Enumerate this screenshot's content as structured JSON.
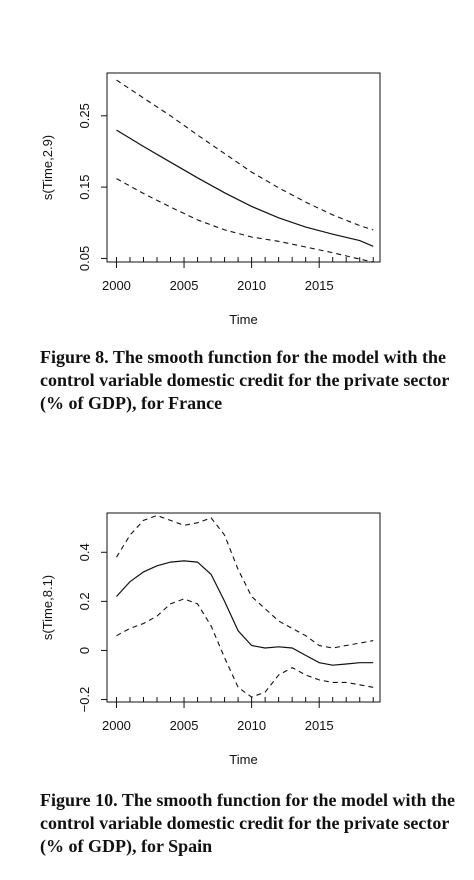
{
  "chart_data": [
    {
      "type": "line",
      "xlabel": "Time",
      "ylabel": "s(Time,2.9)",
      "xlim": [
        1999.3,
        2019.5
      ],
      "ylim": [
        0.045,
        0.31
      ],
      "x_ticks": [
        2000,
        2005,
        2010,
        2015
      ],
      "y_ticks": [
        0.05,
        0.15,
        0.25
      ],
      "rug": [
        2000,
        2001,
        2002,
        2003,
        2004,
        2005,
        2006,
        2007,
        2008,
        2009,
        2010,
        2011,
        2012,
        2013,
        2014,
        2015,
        2016,
        2017,
        2018,
        2019
      ],
      "series": [
        {
          "style": "solid",
          "x": [
            2000,
            2002,
            2004,
            2006,
            2008,
            2010,
            2012,
            2014,
            2016,
            2018,
            2019
          ],
          "values": [
            0.23,
            0.207,
            0.185,
            0.163,
            0.142,
            0.123,
            0.107,
            0.094,
            0.084,
            0.075,
            0.067
          ]
        },
        {
          "style": "dashed",
          "x": [
            2000,
            2002,
            2004,
            2006,
            2008,
            2010,
            2012,
            2014,
            2016,
            2018,
            2019
          ],
          "values": [
            0.3,
            0.275,
            0.25,
            0.223,
            0.197,
            0.171,
            0.149,
            0.129,
            0.111,
            0.096,
            0.09
          ]
        },
        {
          "style": "dashed",
          "x": [
            2000,
            2002,
            2004,
            2006,
            2008,
            2010,
            2012,
            2014,
            2016,
            2018,
            2019
          ],
          "values": [
            0.162,
            0.141,
            0.122,
            0.104,
            0.09,
            0.08,
            0.074,
            0.066,
            0.058,
            0.049,
            0.045
          ]
        }
      ],
      "caption": "Figure 8. The smooth function for the model with the control variable domestic credit for the private sector (% of GDP), for France"
    },
    {
      "type": "line",
      "xlabel": "Time",
      "ylabel": "s(Time,8.1)",
      "xlim": [
        1999.3,
        2019.5
      ],
      "ylim": [
        -0.21,
        0.56
      ],
      "x_ticks": [
        2000,
        2005,
        2010,
        2015
      ],
      "y_ticks": [
        -0.2,
        0.0,
        0.2,
        0.4
      ],
      "rug": [
        2000,
        2001,
        2002,
        2003,
        2004,
        2005,
        2006,
        2007,
        2008,
        2009,
        2010,
        2011,
        2012,
        2013,
        2014,
        2015,
        2016,
        2017,
        2018,
        2019
      ],
      "series": [
        {
          "style": "solid",
          "x": [
            2000,
            2001,
            2002,
            2003,
            2004,
            2005,
            2006,
            2007,
            2008,
            2009,
            2010,
            2011,
            2012,
            2013,
            2014,
            2015,
            2016,
            2017,
            2018,
            2019
          ],
          "values": [
            0.22,
            0.28,
            0.32,
            0.345,
            0.36,
            0.365,
            0.36,
            0.31,
            0.2,
            0.08,
            0.02,
            0.01,
            0.015,
            0.01,
            -0.02,
            -0.05,
            -0.06,
            -0.055,
            -0.05,
            -0.05
          ]
        },
        {
          "style": "dashed",
          "x": [
            2000,
            2001,
            2002,
            2003,
            2004,
            2005,
            2006,
            2007,
            2008,
            2009,
            2010,
            2011,
            2012,
            2013,
            2014,
            2015,
            2016,
            2017,
            2018,
            2019
          ],
          "values": [
            0.38,
            0.47,
            0.53,
            0.55,
            0.53,
            0.51,
            0.52,
            0.54,
            0.47,
            0.33,
            0.22,
            0.17,
            0.12,
            0.09,
            0.06,
            0.02,
            0.01,
            0.02,
            0.03,
            0.04
          ]
        },
        {
          "style": "dashed",
          "x": [
            2000,
            2001,
            2002,
            2003,
            2004,
            2005,
            2006,
            2007,
            2008,
            2009,
            2010,
            2011,
            2012,
            2013,
            2014,
            2015,
            2016,
            2017,
            2018,
            2019
          ],
          "values": [
            0.06,
            0.09,
            0.11,
            0.14,
            0.19,
            0.21,
            0.19,
            0.1,
            -0.03,
            -0.15,
            -0.19,
            -0.17,
            -0.1,
            -0.07,
            -0.1,
            -0.12,
            -0.13,
            -0.13,
            -0.14,
            -0.15
          ]
        }
      ],
      "caption": "Figure 10. The smooth function for the model with the control variable domestic credit for the private sector (% of GDP), for Spain"
    }
  ]
}
